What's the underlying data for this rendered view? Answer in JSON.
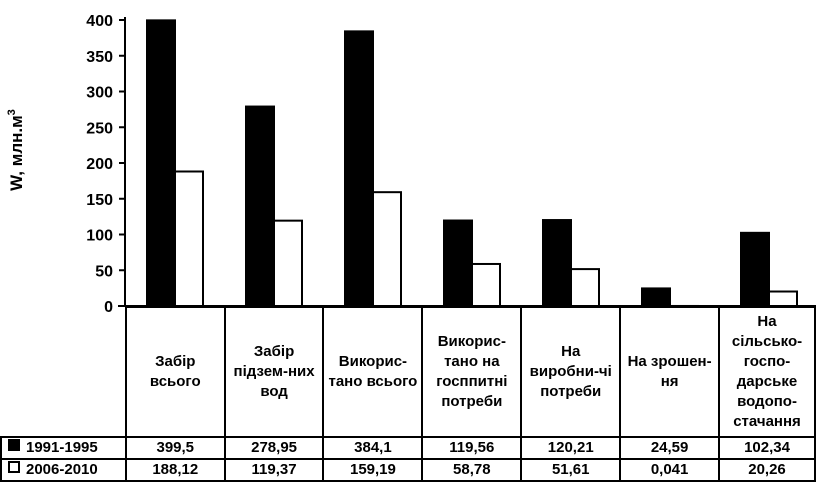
{
  "chart_data": {
    "type": "bar",
    "ylabel": "W, млн.м3",
    "ylim": [
      0,
      400
    ],
    "yticks": [
      "0",
      "50",
      "100",
      "150",
      "200",
      "250",
      "300",
      "350",
      "400"
    ],
    "categories": [
      "Забір всього",
      "Забір підзем-них вод",
      "Викорис-тано всього",
      "Викорис-тано на госппитні потреби",
      "На виробни-чі потреби",
      "На зрошен-ня",
      "На сільсько-госпо-дарське водопо-стачання"
    ],
    "series": [
      {
        "name": "1991-1995",
        "fill": "#000000",
        "values": [
          399.5,
          278.95,
          384.1,
          119.56,
          120.21,
          24.59,
          102.34
        ],
        "labels": [
          "399,5",
          "278,95",
          "384,1",
          "119,56",
          "120,21",
          "24,59",
          "102,34"
        ]
      },
      {
        "name": "2006-2010",
        "fill": "#ffffff",
        "values": [
          188.12,
          119.37,
          159.19,
          58.78,
          51.61,
          0.041,
          20.26
        ],
        "labels": [
          "188,12",
          "119,37",
          "159,19",
          "58,78",
          "51,61",
          "0,041",
          "20,26"
        ]
      }
    ],
    "grid": false,
    "legend": "table-left"
  }
}
